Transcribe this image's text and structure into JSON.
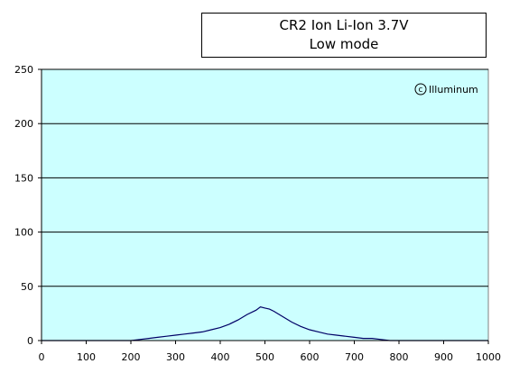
{
  "chart_data": {
    "type": "line",
    "title": "CR2 Ion Li-Ion 3.7V",
    "subtitle": "Low mode",
    "watermark": "Illuminum",
    "xlim": [
      0,
      1000
    ],
    "ylim": [
      0,
      250
    ],
    "x_ticks": [
      0,
      100,
      200,
      300,
      400,
      500,
      600,
      700,
      800,
      900,
      1000
    ],
    "y_ticks": [
      0,
      50,
      100,
      150,
      200,
      250
    ],
    "grid": "horizontal",
    "legend": "none",
    "colors": {
      "plot_bg": "#ccffff",
      "line": "#000066",
      "grid": "#000000"
    },
    "series": [
      {
        "x": [
          0,
          200,
          220,
          240,
          260,
          280,
          300,
          320,
          340,
          360,
          380,
          400,
          420,
          440,
          460,
          480,
          490,
          500,
          510,
          520,
          540,
          560,
          580,
          600,
          620,
          640,
          660,
          680,
          700,
          720,
          740,
          760,
          780,
          800,
          1000
        ],
        "values": [
          0,
          0,
          1,
          2,
          3,
          4,
          5,
          6,
          7,
          8,
          10,
          12,
          15,
          19,
          24,
          28,
          31,
          30,
          29,
          27,
          22,
          17,
          13,
          10,
          8,
          6,
          5,
          4,
          3,
          2,
          2,
          1,
          0,
          0,
          0
        ]
      }
    ]
  }
}
